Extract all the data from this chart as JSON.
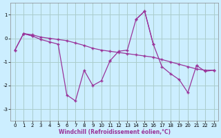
{
  "xlabel": "Windchill (Refroidissement éolien,°C)",
  "background_color": "#cceeff",
  "grid_color": "#aacccc",
  "line_color": "#993399",
  "x_values": [
    0,
    1,
    2,
    3,
    4,
    5,
    6,
    7,
    8,
    9,
    10,
    11,
    12,
    13,
    14,
    15,
    16,
    17,
    18,
    19,
    20,
    21,
    22,
    23
  ],
  "line_main": [
    -0.5,
    0.2,
    0.1,
    -0.05,
    -0.15,
    -0.25,
    -2.4,
    -2.65,
    -1.35,
    -2.0,
    -1.8,
    -0.95,
    -0.55,
    -0.5,
    0.8,
    1.15,
    -0.25,
    -1.2,
    -1.5,
    -1.75,
    -2.3,
    -1.15,
    -1.4,
    -1.35
  ],
  "line_trend": [
    -0.5,
    0.2,
    0.15,
    0.05,
    0.0,
    -0.05,
    -0.1,
    -0.2,
    -0.3,
    -0.42,
    -0.5,
    -0.55,
    -0.6,
    -0.65,
    -0.7,
    -0.75,
    -0.8,
    -0.9,
    -1.0,
    -1.1,
    -1.2,
    -1.3,
    -1.35,
    -1.35
  ],
  "line_partial": [
    null,
    0.2,
    0.1,
    null,
    null,
    null,
    null,
    null,
    null,
    null,
    null,
    -0.95,
    null,
    null,
    0.8,
    1.15,
    -0.25,
    null,
    null,
    null,
    null,
    -1.15,
    null,
    null
  ],
  "ylim": [
    -3.5,
    1.5
  ],
  "xlim": [
    -0.5,
    23.5
  ],
  "yticks": [
    -3,
    -2,
    -1,
    0,
    1
  ],
  "xticks": [
    0,
    1,
    2,
    3,
    4,
    5,
    6,
    7,
    8,
    9,
    10,
    11,
    12,
    13,
    14,
    15,
    16,
    17,
    18,
    19,
    20,
    21,
    22,
    23
  ],
  "tick_fontsize": 5,
  "xlabel_fontsize": 5.5,
  "xlabel_color": "#993399",
  "lw": 0.9,
  "ms": 2.5
}
